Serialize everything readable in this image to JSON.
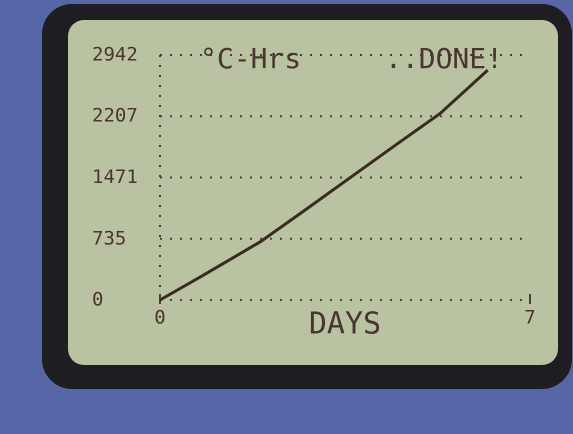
{
  "chart_data": {
    "type": "line",
    "title": "°C-Hrs",
    "status": "..DONE!",
    "x_label": "DAYS",
    "x": [
      0,
      0.8,
      1.9,
      2.7,
      3.6,
      4.5,
      5.3,
      6.2
    ],
    "series": [
      {
        "name": "°C-Hrs",
        "color": "#3a2a22",
        "values": [
          0,
          290,
          700,
          1060,
          1470,
          1880,
          2240,
          2760
        ]
      }
    ],
    "xlim": [
      0,
      7
    ],
    "xticks": [
      0,
      7
    ],
    "ylim": [
      0,
      2942
    ],
    "yticks": [
      0,
      735,
      1471,
      2207,
      2942
    ],
    "grid": true
  }
}
